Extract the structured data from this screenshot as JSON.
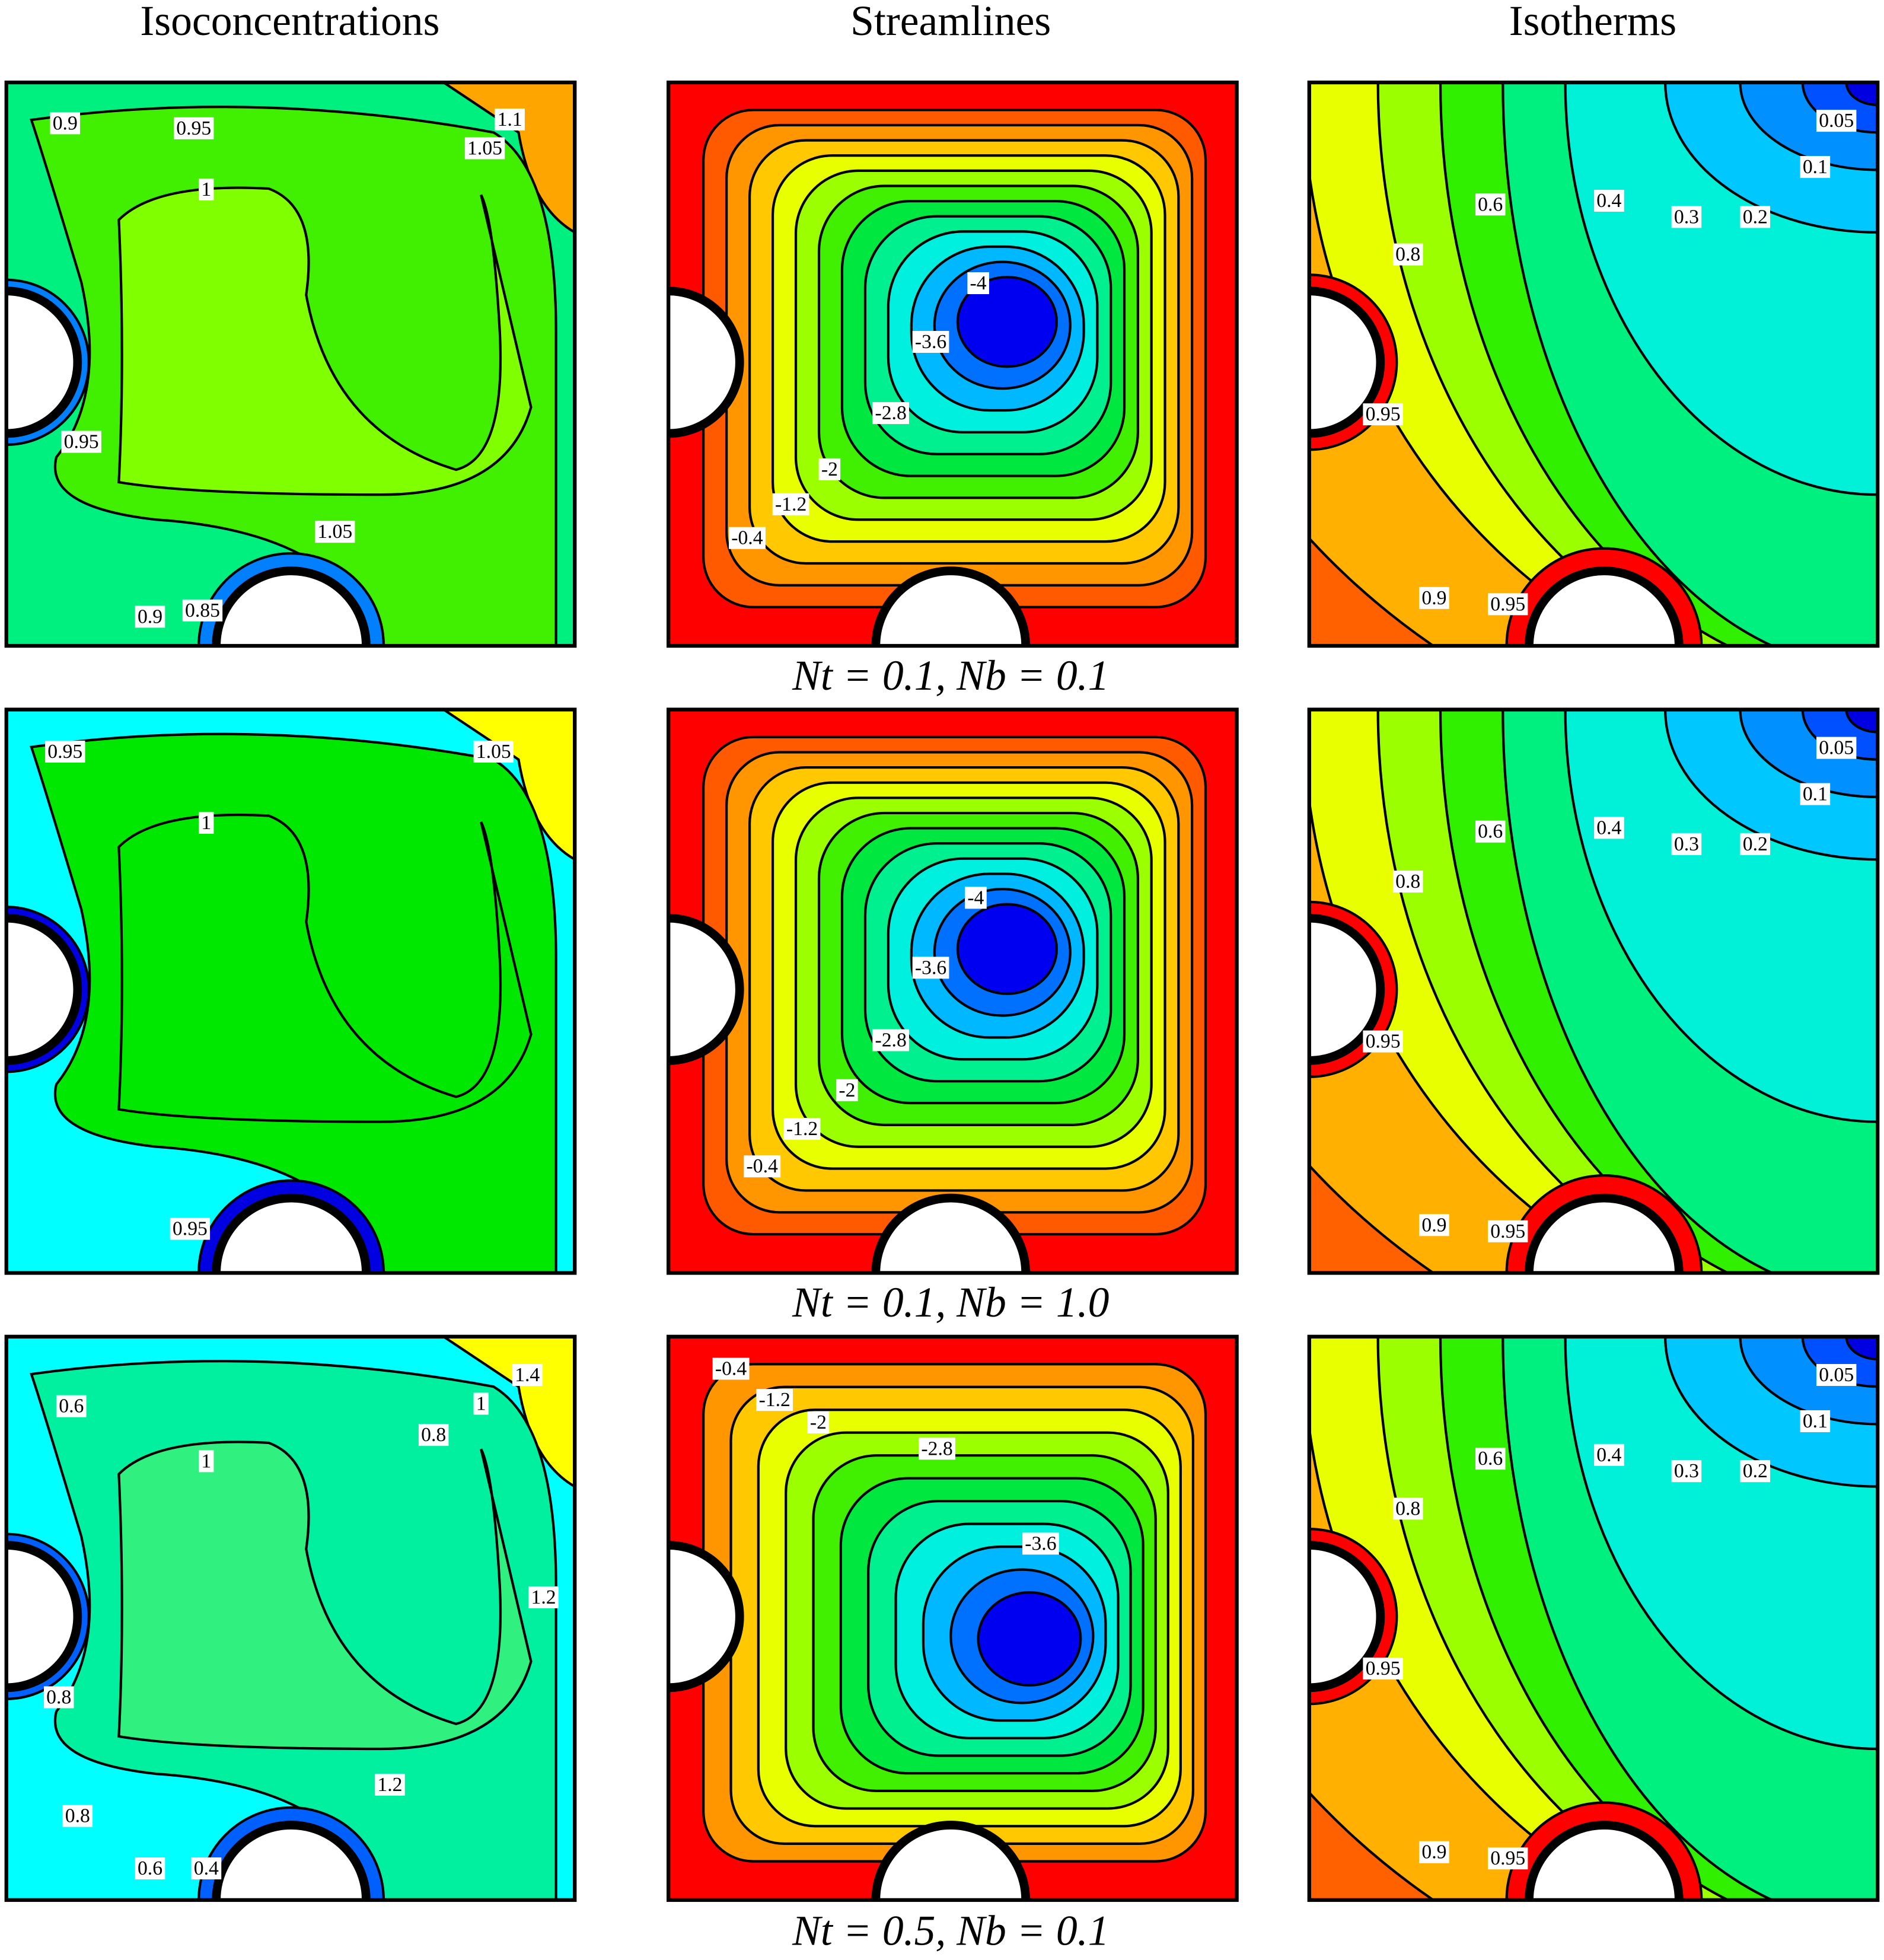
{
  "figure": {
    "column_titles": [
      "Isoconcentrations",
      "Streamlines",
      "Isotherms"
    ],
    "rows": [
      {
        "caption": "Nt = 0.1, Nb = 0.1",
        "isoconcentration_labels": [
          "0.9",
          "0.95",
          "1",
          "1.1",
          "1.05",
          "0.95",
          "1.05",
          "0.9",
          "0.85"
        ],
        "streamline_labels": [
          "-4",
          "-3.6",
          "-2.8",
          "-2",
          "-1.2",
          "-0.4"
        ],
        "isotherm_labels": [
          "0.05",
          "0.1",
          "0.6",
          "0.4",
          "0.3",
          "0.2",
          "0.8",
          "0.95",
          "0.9",
          "0.95"
        ]
      },
      {
        "caption": "Nt = 0.1, Nb = 1.0",
        "isoconcentration_labels": [
          "0.95",
          "1.05",
          "1",
          "0.95"
        ],
        "streamline_labels": [
          "-4",
          "-3.6",
          "-2.8",
          "-2",
          "-1.2",
          "-0.4"
        ],
        "isotherm_labels": [
          "0.05",
          "0.1",
          "0.6",
          "0.4",
          "0.3",
          "0.2",
          "0.8",
          "0.95",
          "0.9",
          "0.95"
        ]
      },
      {
        "caption": "Nt = 0.5, Nb = 0.1",
        "isoconcentration_labels": [
          "1.4",
          "0.6",
          "1",
          "0.8",
          "1",
          "1.2",
          "0.8",
          "1.2",
          "0.8",
          "0.6",
          "0.4"
        ],
        "streamline_labels": [
          "-0.4",
          "-1.2",
          "-2",
          "-2.8",
          "-3.6"
        ],
        "isotherm_labels": [
          "0.05",
          "0.1",
          "0.6",
          "0.4",
          "0.3",
          "0.2",
          "0.8",
          "0.95",
          "0.9",
          "0.95"
        ]
      }
    ]
  }
}
